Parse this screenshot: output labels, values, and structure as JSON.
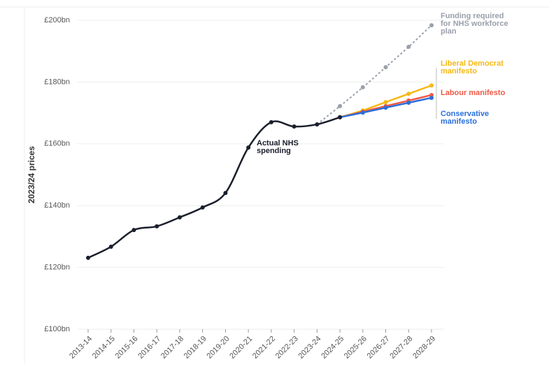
{
  "chart_data": {
    "type": "line",
    "y_label": "2023/24 prices",
    "categories": [
      "2013-14",
      "2014-15",
      "2015-16",
      "2016-17",
      "2017-18",
      "2018-19",
      "2019-20",
      "2020-21",
      "2021-22",
      "2022-23",
      "2023-24",
      "2024-25",
      "2025-26",
      "2026-27",
      "2027-28",
      "2028-29"
    ],
    "series": [
      {
        "name": "Funding required for NHS workforce plan",
        "color": "#9aa0aa",
        "dashed": true,
        "values": [
          null,
          null,
          null,
          null,
          null,
          null,
          null,
          null,
          null,
          null,
          166.3,
          172.2,
          178.3,
          184.8,
          191.4,
          198.4
        ]
      },
      {
        "name": "Liberal Democrat manifesto",
        "color": "#f5b914",
        "values": [
          null,
          null,
          null,
          null,
          null,
          null,
          null,
          null,
          null,
          null,
          null,
          168.6,
          170.8,
          173.5,
          176.2,
          178.9
        ]
      },
      {
        "name": "Labour manifesto",
        "color": "#ee5a45",
        "values": [
          null,
          null,
          null,
          null,
          null,
          null,
          null,
          null,
          null,
          null,
          null,
          168.6,
          170.4,
          172.2,
          174.0,
          175.8
        ]
      },
      {
        "name": "Conservative manifesto",
        "color": "#2a6fdb",
        "values": [
          null,
          null,
          null,
          null,
          null,
          null,
          null,
          null,
          null,
          null,
          null,
          168.6,
          170.1,
          171.7,
          173.3,
          174.9
        ]
      },
      {
        "name": "Actual NHS spending",
        "color": "#1a1f2b",
        "values": [
          123.1,
          126.7,
          132.1,
          133.3,
          136.2,
          139.4,
          144.1,
          158.8,
          167.0,
          165.6,
          166.3,
          168.6,
          null,
          null,
          null,
          null
        ]
      }
    ],
    "ylim": [
      100,
      200
    ],
    "yticks": [
      {
        "value": 100,
        "label": "£100bn"
      },
      {
        "value": 120,
        "label": "£120bn"
      },
      {
        "value": 140,
        "label": "£140bn"
      },
      {
        "value": 160,
        "label": "£160bn"
      },
      {
        "value": 180,
        "label": "£180bn"
      },
      {
        "value": 200,
        "label": "£200bn"
      }
    ],
    "grid": true
  }
}
